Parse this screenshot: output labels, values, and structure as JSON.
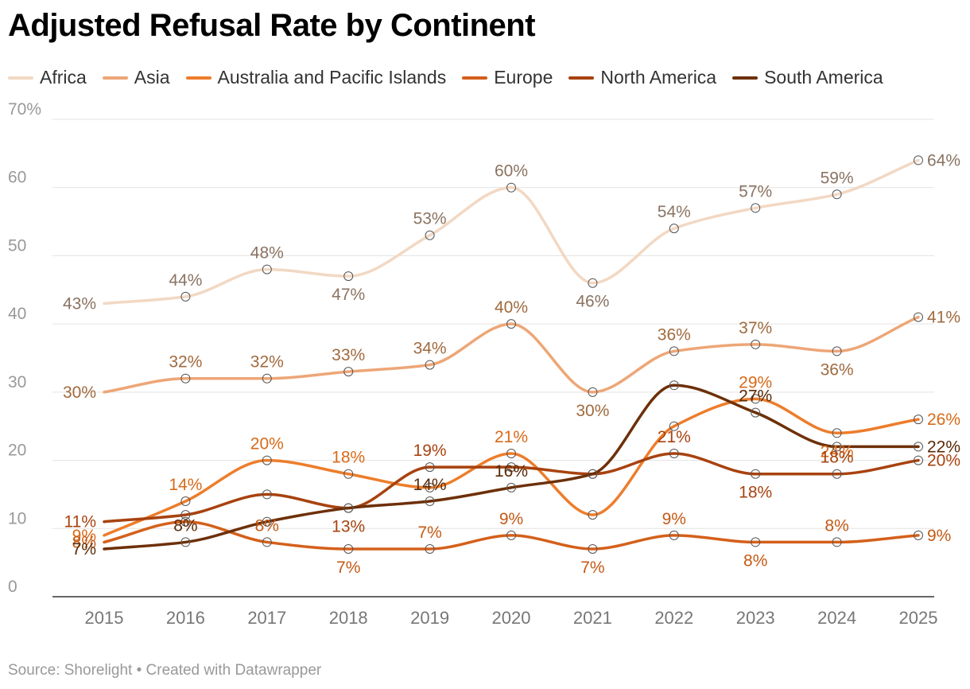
{
  "chart_data": {
    "type": "line",
    "title": "Adjusted Refusal Rate by Continent",
    "x": [
      "2015",
      "2016",
      "2017",
      "2018",
      "2019",
      "2020",
      "2021",
      "2022",
      "2023",
      "2024",
      "2025"
    ],
    "ylim": [
      0,
      70
    ],
    "yticks": [
      "0",
      "10",
      "20",
      "30",
      "40",
      "50",
      "60",
      "70%"
    ],
    "grid": true,
    "legend_placement": "top",
    "series": [
      {
        "name": "Africa",
        "color": "#f2d8c3",
        "label_color": "#8a7362",
        "values": [
          43,
          44,
          48,
          47,
          53,
          60,
          46,
          54,
          57,
          59,
          64
        ],
        "labels": [
          "43%",
          "44%",
          "48%",
          "47%",
          "53%",
          "60%",
          "46%",
          "54%",
          "57%",
          "59%",
          "64%"
        ]
      },
      {
        "name": "Asia",
        "color": "#eda677",
        "label_color": "#a06a3e",
        "values": [
          30,
          32,
          32,
          33,
          34,
          40,
          30,
          36,
          37,
          36,
          41
        ],
        "labels": [
          "30%",
          "32%",
          "32%",
          "33%",
          "34%",
          "40%",
          "30%",
          "36%",
          "37%",
          "36%",
          "41%"
        ]
      },
      {
        "name": "Australia and Pacific Islands",
        "color": "#ed7d2b",
        "label_color": "#d86a18",
        "values": [
          9,
          14,
          20,
          18,
          16,
          21,
          12,
          25,
          29,
          24,
          26
        ],
        "labels": [
          "9%",
          "14%",
          "20%",
          "18%",
          "",
          "21%",
          "",
          "",
          "29%",
          "24%",
          "26%"
        ]
      },
      {
        "name": "Europe",
        "color": "#d4601a",
        "label_color": "#c45a15",
        "values": [
          8,
          11,
          8,
          7,
          7,
          9,
          7,
          9,
          8,
          8,
          9
        ],
        "labels": [
          "8%",
          "",
          "8%",
          "7%",
          "7%",
          "9%",
          "7%",
          "9%",
          "8%",
          "8%",
          "9%"
        ]
      },
      {
        "name": "North America",
        "color": "#a8420f",
        "label_color": "#a8420f",
        "values": [
          11,
          12,
          15,
          13,
          19,
          19,
          18,
          21,
          18,
          18,
          20
        ],
        "labels": [
          "11%",
          "",
          "",
          "13%",
          "19%",
          "",
          "",
          "21%",
          "18%",
          "18%",
          "20%"
        ]
      },
      {
        "name": "South America",
        "color": "#6d3008",
        "label_color": "#5a2a06",
        "values": [
          7,
          8,
          11,
          13,
          14,
          16,
          18,
          31,
          27,
          22,
          22
        ],
        "labels": [
          "7%",
          "8%",
          "",
          "",
          "14%",
          "16%",
          "",
          "",
          "27%",
          "",
          "22%"
        ]
      }
    ]
  },
  "footer": "Source: Shorelight • Created with Datawrapper"
}
